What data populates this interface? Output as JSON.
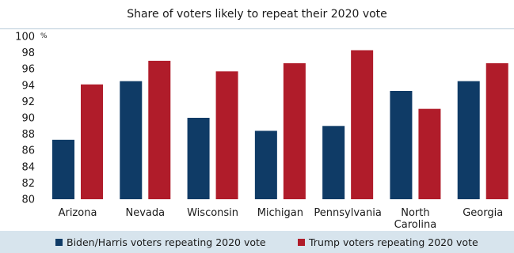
{
  "chart_data": {
    "type": "bar",
    "title": "Share of voters likely to repeat their 2020 vote",
    "unit_label": "%",
    "categories": [
      "Arizona",
      "Nevada",
      "Wisconsin",
      "Michigan",
      "Pennsylvania",
      "North Carolina",
      "Georgia"
    ],
    "category_lines": [
      [
        "Arizona"
      ],
      [
        "Nevada"
      ],
      [
        "Wisconsin"
      ],
      [
        "Michigan"
      ],
      [
        "Pennsylvania"
      ],
      [
        "North",
        "Carolina"
      ],
      [
        "Georgia"
      ]
    ],
    "series": [
      {
        "name": "Biden/Harris voters repeating 2020 vote",
        "color": "#0f3b66",
        "values": [
          87.3,
          94.5,
          90.0,
          88.4,
          89.0,
          93.3,
          94.5
        ]
      },
      {
        "name": "Trump voters repeating 2020 vote",
        "color": "#b01c2a",
        "values": [
          94.1,
          97.0,
          95.7,
          96.7,
          98.3,
          91.1,
          96.7
        ]
      }
    ],
    "yticks": [
      "80",
      "82",
      "84",
      "86",
      "88",
      "90",
      "92",
      "94",
      "96",
      "98",
      "100"
    ],
    "ylim": [
      80,
      100
    ],
    "grid": false,
    "legend_position": "bottom"
  }
}
